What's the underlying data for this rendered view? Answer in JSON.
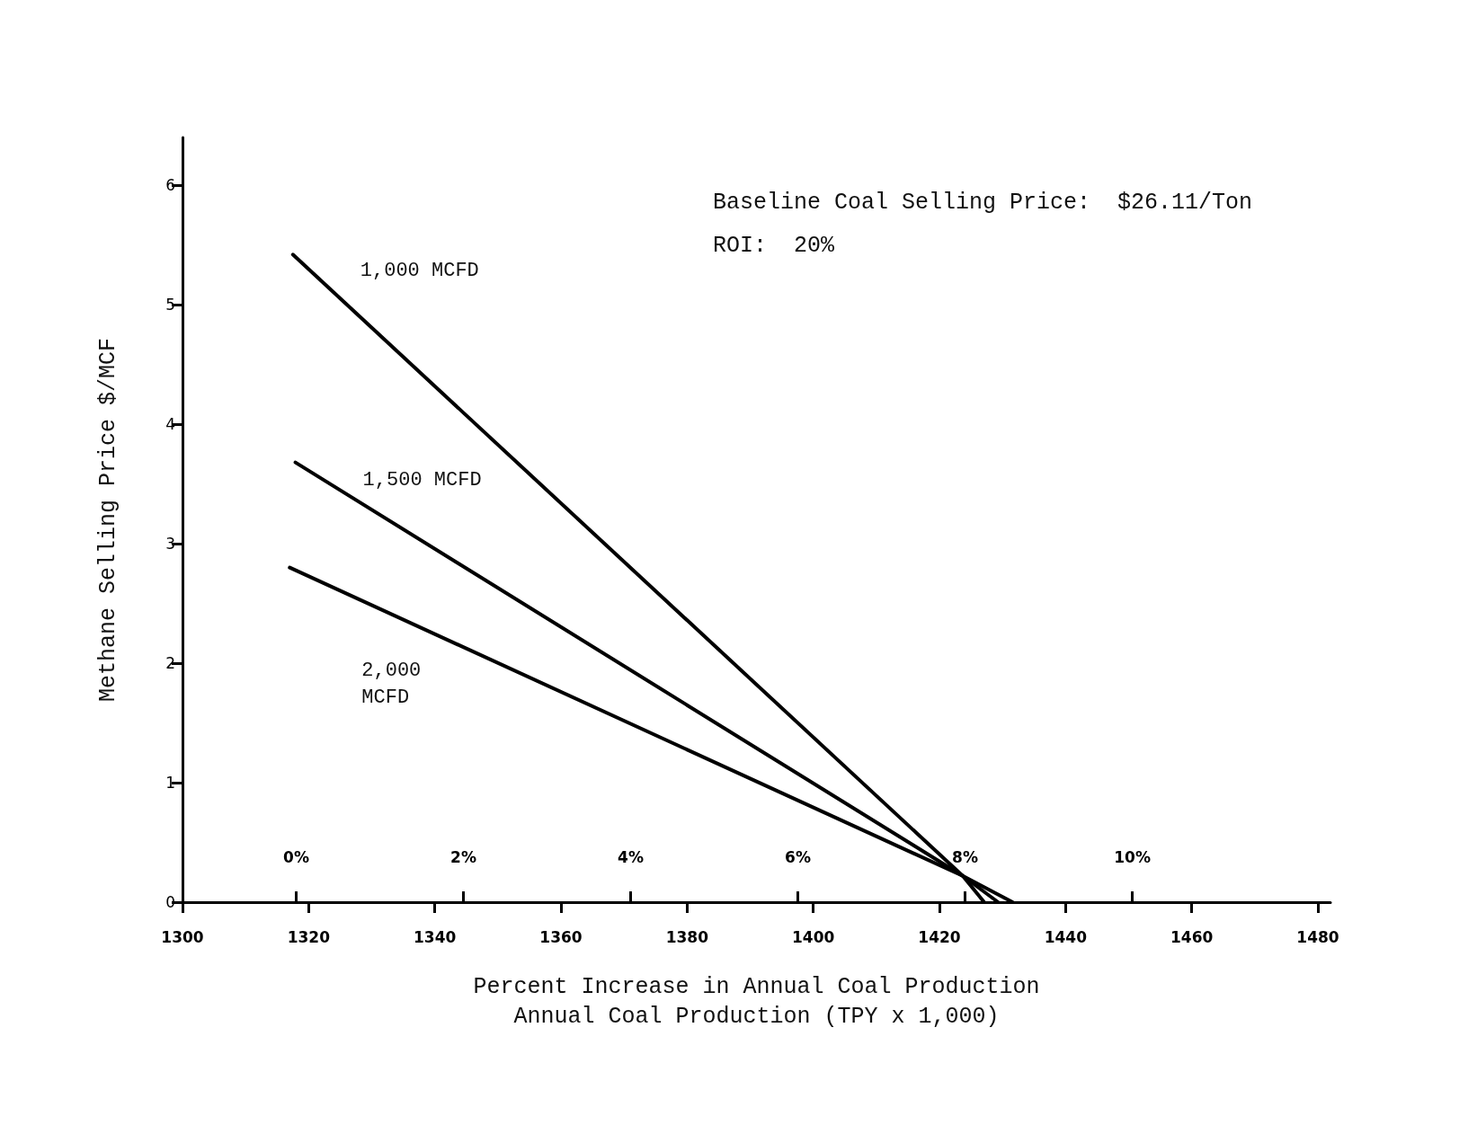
{
  "chart_data": {
    "type": "line",
    "xlabel": "Annual Coal Production (TPY x 1,000)",
    "x2label": "Percent Increase in Annual Coal Production",
    "ylabel": "Methane Selling Price $/MCF",
    "annotations": [
      "Baseline Coal Selling Price:  $26.11/Ton",
      "ROI:  20%"
    ],
    "series": [
      {
        "name": "1,000 MCFD",
        "color": "#000000",
        "x": [
          1317.5,
          1423.7,
          1427.1
        ],
        "values": [
          5.42,
          0.22,
          0
        ]
      },
      {
        "name": "1,500 MCFD",
        "color": "#000000",
        "x": [
          1317.9,
          1423.7,
          1429.3
        ],
        "values": [
          3.68,
          0.22,
          0
        ]
      },
      {
        "name": "2,000\nMCFD",
        "color": "#000000",
        "x": [
          1317,
          1423.7,
          1431.6
        ],
        "values": [
          2.8,
          0.22,
          0
        ]
      }
    ],
    "xlim": [
      1300,
      1482
    ],
    "xticks": [
      1300,
      1320,
      1340,
      1360,
      1380,
      1400,
      1420,
      1440,
      1460,
      1480
    ],
    "x2lim": [
      -1.36,
      12.37
    ],
    "x2ticks": [
      {
        "value": 0,
        "label": "0%"
      },
      {
        "value": 2,
        "label": "2%"
      },
      {
        "value": 4,
        "label": "4%"
      },
      {
        "value": 6,
        "label": "6%"
      },
      {
        "value": 8,
        "label": "8%"
      },
      {
        "value": 10,
        "label": "10%"
      }
    ],
    "ylim": [
      0,
      6.4
    ],
    "yticks": [
      0,
      1,
      2,
      3,
      4,
      5,
      6
    ],
    "grid": false,
    "legend": false,
    "marker": "none",
    "line_style": "solid"
  }
}
